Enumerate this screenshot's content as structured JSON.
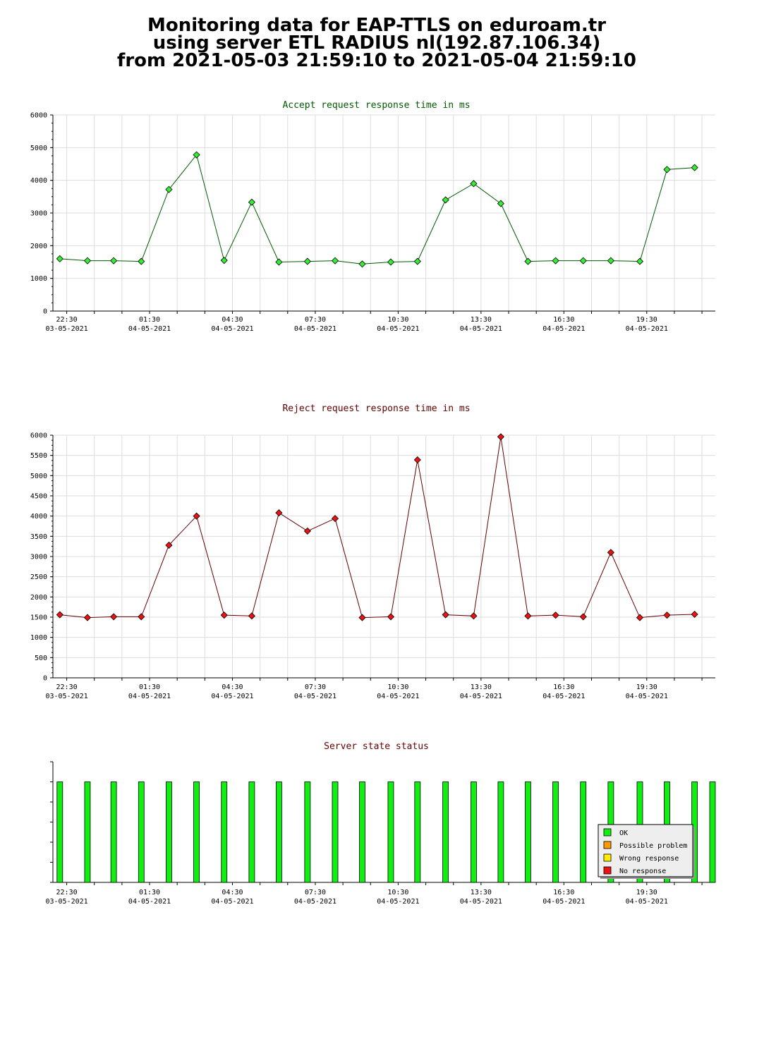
{
  "page": {
    "title_lines": [
      "Monitoring data for EAP-TTLS on eduroam.tr",
      "using server ETL RADIUS nl(192.87.106.34)",
      "from 2021-05-03 21:59:10 to 2021-05-04 21:59:10"
    ]
  },
  "colors": {
    "accept_title": "#005a00",
    "reject_title": "#640000",
    "state_title": "#640000",
    "accept_line": "#005a00",
    "accept_point": "#33ee33",
    "reject_line": "#640000",
    "reject_point": "#ee1111",
    "grid": "#dddddd",
    "ok": "#11ee11",
    "possible_problem": "#ff9900",
    "wrong_response": "#ffee00",
    "no_response": "#ee1111"
  },
  "chart_data": [
    {
      "type": "line",
      "title": "Accept request response time in ms",
      "xlabel": "",
      "ylabel": "",
      "x_time_range": [
        "2021-05-03 22:00",
        "2021-05-04 21:59"
      ],
      "x_ticks": [
        {
          "time": "22:30",
          "date": "03-05-2021"
        },
        {
          "time": "01:30",
          "date": "04-05-2021"
        },
        {
          "time": "04:30",
          "date": "04-05-2021"
        },
        {
          "time": "07:30",
          "date": "04-05-2021"
        },
        {
          "time": "10:30",
          "date": "04-05-2021"
        },
        {
          "time": "13:30",
          "date": "04-05-2021"
        },
        {
          "time": "16:30",
          "date": "04-05-2021"
        },
        {
          "time": "19:30",
          "date": "04-05-2021"
        }
      ],
      "ylim": [
        0,
        6000
      ],
      "y_ticks": [
        0,
        1000,
        2000,
        3000,
        4000,
        5000,
        6000
      ],
      "grid": true,
      "x": [
        "2021-05-03 22:15",
        "2021-05-03 23:15",
        "2021-05-04 00:12",
        "2021-05-04 01:12",
        "2021-05-04 02:12",
        "2021-05-04 03:12",
        "2021-05-04 04:12",
        "2021-05-04 05:12",
        "2021-05-04 06:11",
        "2021-05-04 07:13",
        "2021-05-04 08:13",
        "2021-05-04 09:12",
        "2021-05-04 10:14",
        "2021-05-04 11:12",
        "2021-05-04 12:13",
        "2021-05-04 13:14",
        "2021-05-04 14:13",
        "2021-05-04 15:12",
        "2021-05-04 16:12",
        "2021-05-04 17:12",
        "2021-05-04 18:12",
        "2021-05-04 19:15",
        "2021-05-04 20:14",
        "2021-05-04 21:14"
      ],
      "values": [
        1600,
        1540,
        1540,
        1520,
        3720,
        4780,
        1550,
        3330,
        1500,
        1520,
        1540,
        1440,
        1500,
        1520,
        3400,
        3900,
        3290,
        1520,
        1540,
        1540,
        1540,
        1520,
        4330,
        4390
      ]
    },
    {
      "type": "line",
      "title": "Reject request response time in ms",
      "xlabel": "",
      "ylabel": "",
      "x_time_range": [
        "2021-05-03 22:00",
        "2021-05-04 21:59"
      ],
      "x_ticks": [
        {
          "time": "22:30",
          "date": "03-05-2021"
        },
        {
          "time": "01:30",
          "date": "04-05-2021"
        },
        {
          "time": "04:30",
          "date": "04-05-2021"
        },
        {
          "time": "07:30",
          "date": "04-05-2021"
        },
        {
          "time": "10:30",
          "date": "04-05-2021"
        },
        {
          "time": "13:30",
          "date": "04-05-2021"
        },
        {
          "time": "16:30",
          "date": "04-05-2021"
        },
        {
          "time": "19:30",
          "date": "04-05-2021"
        }
      ],
      "ylim": [
        0,
        6000
      ],
      "y_ticks": [
        0,
        500,
        1000,
        1500,
        2000,
        2500,
        3000,
        3500,
        4000,
        4500,
        5000,
        5500,
        6000
      ],
      "grid": true,
      "x": [
        "2021-05-03 22:15",
        "2021-05-03 23:15",
        "2021-05-04 00:12",
        "2021-05-04 01:12",
        "2021-05-04 02:12",
        "2021-05-04 03:12",
        "2021-05-04 04:12",
        "2021-05-04 05:12",
        "2021-05-04 06:11",
        "2021-05-04 07:13",
        "2021-05-04 08:13",
        "2021-05-04 09:12",
        "2021-05-04 10:14",
        "2021-05-04 11:12",
        "2021-05-04 12:13",
        "2021-05-04 13:14",
        "2021-05-04 14:13",
        "2021-05-04 15:12",
        "2021-05-04 16:12",
        "2021-05-04 17:12",
        "2021-05-04 18:12",
        "2021-05-04 19:15",
        "2021-05-04 20:14",
        "2021-05-04 21:14"
      ],
      "values": [
        1560,
        1490,
        1510,
        1510,
        3280,
        4000,
        1550,
        1530,
        4080,
        3630,
        3940,
        1490,
        1510,
        5390,
        1560,
        1530,
        5960,
        1530,
        1550,
        1510,
        3100,
        1490,
        1550,
        1570
      ]
    },
    {
      "type": "bar",
      "title": "Server state status",
      "xlabel": "",
      "ylabel": "",
      "x_time_range": [
        "2021-05-03 22:00",
        "2021-05-04 21:59"
      ],
      "x_ticks": [
        {
          "time": "22:30",
          "date": "03-05-2021"
        },
        {
          "time": "01:30",
          "date": "04-05-2021"
        },
        {
          "time": "04:30",
          "date": "04-05-2021"
        },
        {
          "time": "07:30",
          "date": "04-05-2021"
        },
        {
          "time": "10:30",
          "date": "04-05-2021"
        },
        {
          "time": "13:30",
          "date": "04-05-2021"
        },
        {
          "time": "16:30",
          "date": "04-05-2021"
        },
        {
          "time": "19:30",
          "date": "04-05-2021"
        }
      ],
      "grid": false,
      "x": [
        "2021-05-03 22:15",
        "2021-05-03 23:15",
        "2021-05-04 00:12",
        "2021-05-04 01:12",
        "2021-05-04 02:12",
        "2021-05-04 03:12",
        "2021-05-04 04:12",
        "2021-05-04 05:12",
        "2021-05-04 06:11",
        "2021-05-04 07:13",
        "2021-05-04 08:13",
        "2021-05-04 09:12",
        "2021-05-04 10:14",
        "2021-05-04 11:12",
        "2021-05-04 12:13",
        "2021-05-04 13:14",
        "2021-05-04 14:13",
        "2021-05-04 15:12",
        "2021-05-04 16:12",
        "2021-05-04 17:12",
        "2021-05-04 18:12",
        "2021-05-04 19:15",
        "2021-05-04 20:14",
        "2021-05-04 21:14",
        "2021-05-04 21:58"
      ],
      "states": [
        "OK",
        "OK",
        "OK",
        "OK",
        "OK",
        "OK",
        "OK",
        "OK",
        "OK",
        "OK",
        "OK",
        "OK",
        "OK",
        "OK",
        "OK",
        "OK",
        "OK",
        "OK",
        "OK",
        "OK",
        "OK",
        "OK",
        "OK",
        "OK",
        "OK"
      ],
      "legend": {
        "placement": "bottom-right",
        "entries": [
          {
            "label": "OK",
            "color_key": "ok"
          },
          {
            "label": "Possible problem",
            "color_key": "possible_problem"
          },
          {
            "label": "Wrong response",
            "color_key": "wrong_response"
          },
          {
            "label": "No response",
            "color_key": "no_response"
          }
        ]
      }
    }
  ]
}
